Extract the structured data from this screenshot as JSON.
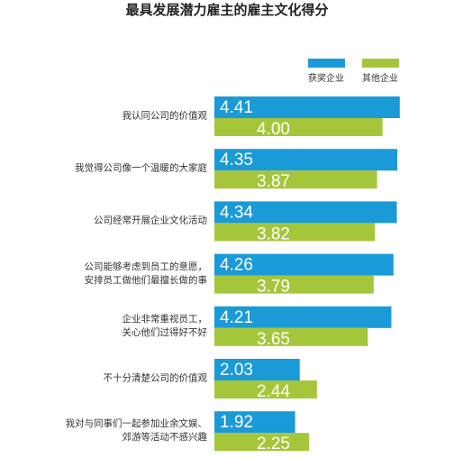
{
  "chart_data": {
    "type": "hbar",
    "title": "最具发展潜力雇主的雇主文化得分",
    "categories": [
      "我认同公司的价值观",
      "我觉得公司像一个温暖的大家庭",
      "公司经常开展企业文化活动",
      "公司能够考虑到员工的意愿，\n安排员工做他们最擅长做的事",
      "企业非常重视员工，\n关心他们过得好不好",
      "不十分清楚公司的价值观",
      "我对与同事们一起参加业余文娱、\n郊游等活动不感兴趣"
    ],
    "series": [
      {
        "name": "获奖企业",
        "color": "#1a9ad6",
        "values": [
          4.41,
          4.35,
          4.34,
          4.26,
          4.21,
          2.03,
          1.92
        ],
        "value_labels": [
          "4.41",
          "4.35",
          "4.34",
          "4.26",
          "4.21",
          "2.03",
          "1.92"
        ]
      },
      {
        "name": "其他企业",
        "color": "#a5c63b",
        "values": [
          4.0,
          3.87,
          3.82,
          3.79,
          3.65,
          2.44,
          2.25
        ],
        "value_labels": [
          "4.00",
          "3.87",
          "3.82",
          "3.79",
          "3.65",
          "2.44",
          "2.25"
        ]
      }
    ],
    "xlim": [
      0,
      4.5
    ]
  }
}
